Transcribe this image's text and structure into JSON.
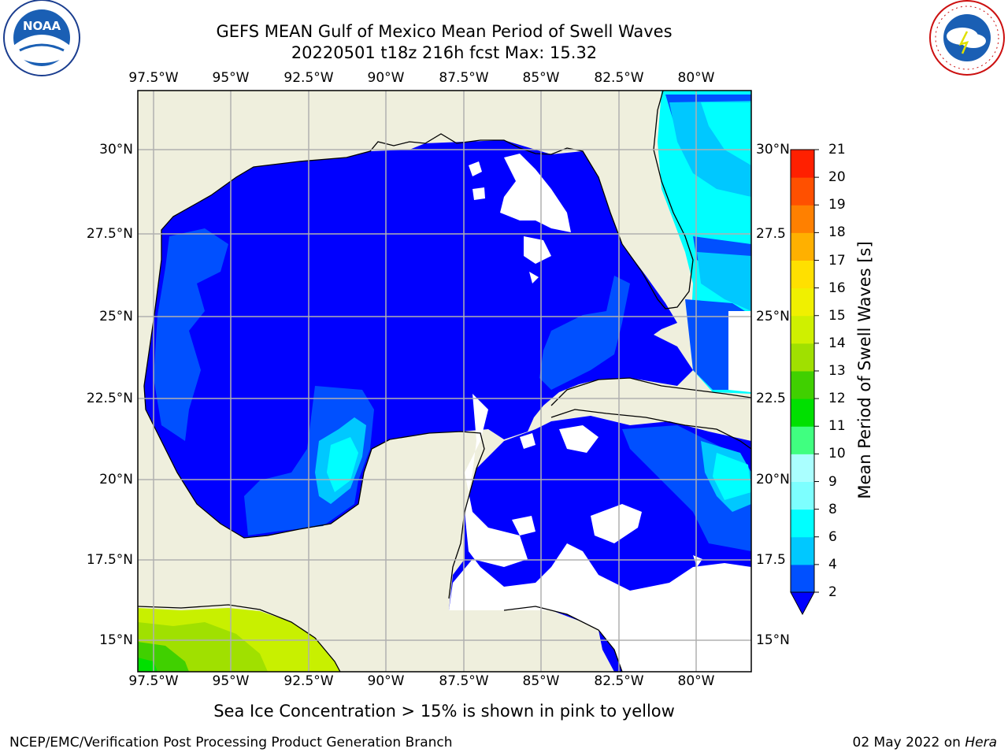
{
  "header": {
    "title_line1": "GEFS MEAN Gulf of Mexico Mean Period of Swell Waves",
    "title_line2": "20220501 t18z 216h fcst   Max: 15.32"
  },
  "logos": {
    "left": {
      "name": "noaa-logo",
      "text": "NOAA"
    },
    "right": {
      "name": "nws-logo",
      "text": "NATIONAL WEATHER SERVICE"
    }
  },
  "map": {
    "lon_ticks": [
      "97.5°W",
      "95°W",
      "92.5°W",
      "90°W",
      "87.5°W",
      "85°W",
      "82.5°W",
      "80°W"
    ],
    "lat_ticks_left": [
      "30°N",
      "27.5°N",
      "25°N",
      "22.5°N",
      "20°N",
      "17.5°N",
      "15°N"
    ],
    "lat_ticks_right": [
      "30°N",
      "27.5",
      "25°N",
      "22.5",
      "20°N",
      "17.5",
      "15°N"
    ],
    "colors": {
      "land": "#efefdd",
      "ocean": "#0000ff",
      "grid": "#b0b0b0",
      "coast": "#000000"
    }
  },
  "colorbar": {
    "title": "Mean Period of Swell Waves [s]",
    "levels": [
      "2",
      "4",
      "6",
      "8",
      "9",
      "10",
      "11",
      "12",
      "13",
      "14",
      "15",
      "16",
      "17",
      "18",
      "19",
      "20",
      "21"
    ],
    "colors": [
      "#0050ff",
      "#00c8ff",
      "#00ffff",
      "#7dffff",
      "#aaffff",
      "#40ff80",
      "#00e000",
      "#40d000",
      "#a0e000",
      "#cff000",
      "#f0f000",
      "#ffe000",
      "#ffb000",
      "#ff8000",
      "#ff5000",
      "#ff2000",
      "#ff0000"
    ],
    "under_color": "#0000ff"
  },
  "footer": {
    "note": "Sea Ice Concentration > 15% is shown in pink to yellow",
    "credit": "NCEP/EMC/Verification Post Processing Product Generation Branch",
    "date": "02 May 2022 on",
    "host": "Hera"
  }
}
